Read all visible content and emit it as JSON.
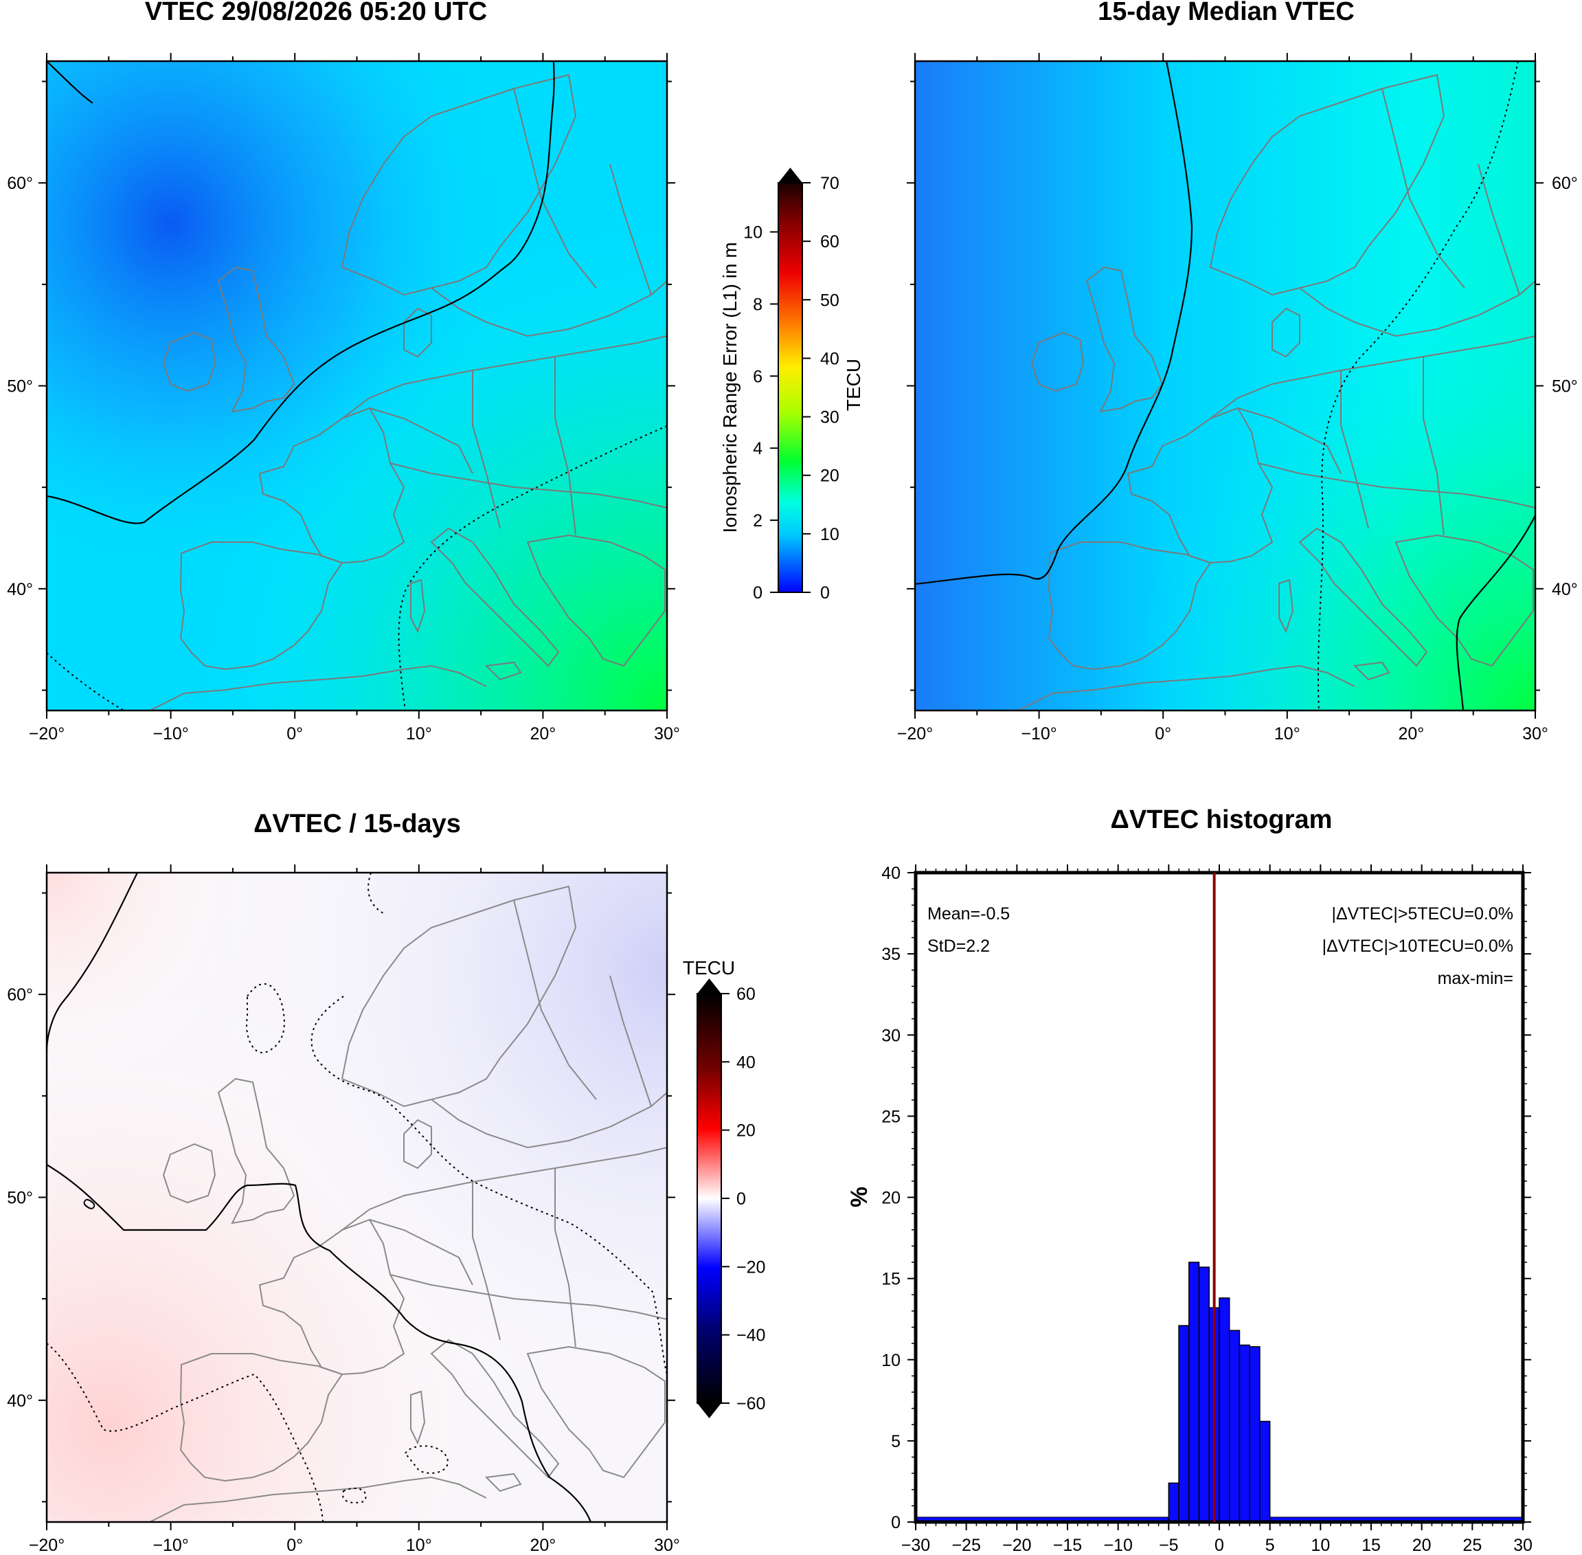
{
  "panels": {
    "vtec_title": "VTEC 29/08/2026 05:20 UTC",
    "median_title": "15-day Median VTEC",
    "delta_title": "ΔVTEC / 15-days",
    "hist_title": "ΔVTEC histogram"
  },
  "map_axes": {
    "lon_ticks": [
      "−20°",
      "−10°",
      "0°",
      "10°",
      "20°",
      "30°"
    ],
    "lat_ticks": [
      "40°",
      "50°",
      "60°"
    ]
  },
  "vtec_colorbar": {
    "tecu_ticks": [
      "0",
      "10",
      "20",
      "30",
      "40",
      "50",
      "60",
      "70"
    ],
    "meter_ticks": [
      "0",
      "2",
      "4",
      "6",
      "8",
      "10"
    ],
    "left_label": "Ionospheric Range Error (L1) in m",
    "right_label": "TECU"
  },
  "delta_colorbar": {
    "ticks": [
      "−60",
      "−40",
      "−20",
      "0",
      "20",
      "40",
      "60"
    ],
    "label": "TECU"
  },
  "contour_label": "0",
  "colors": {
    "vtec_low": "#1464ff",
    "vtec_mid": "#00e8ff",
    "vtec_high": "#00ff40",
    "delta_pos": "#ffd6d6",
    "delta_neg": "#d6d6ff",
    "hist_bar": "#0a0aff",
    "mean_line": "#8b0000",
    "coast": "#808080"
  },
  "histogram": {
    "stats": {
      "mean": "Mean=-0.5",
      "std": "StD=2.2",
      "gt5": "|ΔVTEC|>5TECU=0.0%",
      "gt10": "|ΔVTEC|>10TECU=0.0%",
      "maxmin": "max-min="
    },
    "ylabel": "%"
  },
  "chart_data": [
    {
      "type": "heatmap",
      "title": "VTEC 29/08/2026 05:20 UTC",
      "xlim": [
        -20,
        30
      ],
      "ylim": [
        34,
        66
      ],
      "colorbar": {
        "label": "TECU",
        "range": [
          0,
          70
        ],
        "secondary_label": "Ionospheric Range Error (L1) in m",
        "secondary_range": [
          0,
          11
        ]
      },
      "values_note_points": [
        {
          "lon": -14,
          "lat": 58,
          "tecu": 5
        },
        {
          "lon": 0,
          "lat": 50,
          "tecu": 10
        },
        {
          "lon": 28,
          "lat": 36,
          "tecu": 19
        }
      ]
    },
    {
      "type": "heatmap",
      "title": "15-day Median VTEC",
      "xlim": [
        -20,
        30
      ],
      "ylim": [
        34,
        66
      ],
      "values_note_points": [
        {
          "lon": -14,
          "lat": 54,
          "tecu": 7
        },
        {
          "lon": 5,
          "lat": 50,
          "tecu": 11
        },
        {
          "lon": 29,
          "lat": 36,
          "tecu": 20
        }
      ]
    },
    {
      "type": "heatmap",
      "title": "ΔVTEC / 15-days",
      "xlim": [
        -20,
        30
      ],
      "ylim": [
        34,
        66
      ],
      "colorbar": {
        "label": "TECU",
        "range": [
          -60,
          60
        ]
      },
      "values_note_points": [
        {
          "lon": -18,
          "lat": 40,
          "tecu": 2
        },
        {
          "lon": 28,
          "lat": 60,
          "tecu": -3
        }
      ]
    },
    {
      "type": "bar",
      "title": "ΔVTEC histogram",
      "ylabel": "%",
      "xlim": [
        -30,
        30
      ],
      "ylim": [
        0,
        40
      ],
      "x_ticks": [
        -30,
        -25,
        -20,
        -15,
        -10,
        -5,
        0,
        5,
        10,
        15,
        20,
        25,
        30
      ],
      "y_ticks": [
        0,
        5,
        10,
        15,
        20,
        25,
        30,
        35,
        40
      ],
      "bin_width": 1,
      "bins": [
        -5,
        -4,
        -3,
        -2,
        -1,
        0,
        1,
        2,
        3,
        4
      ],
      "values": [
        2.4,
        12.1,
        16.0,
        15.7,
        13.2,
        13.8,
        11.8,
        10.9,
        10.8,
        6.2
      ],
      "tail_value": 0.3,
      "mean": -0.5
    }
  ]
}
